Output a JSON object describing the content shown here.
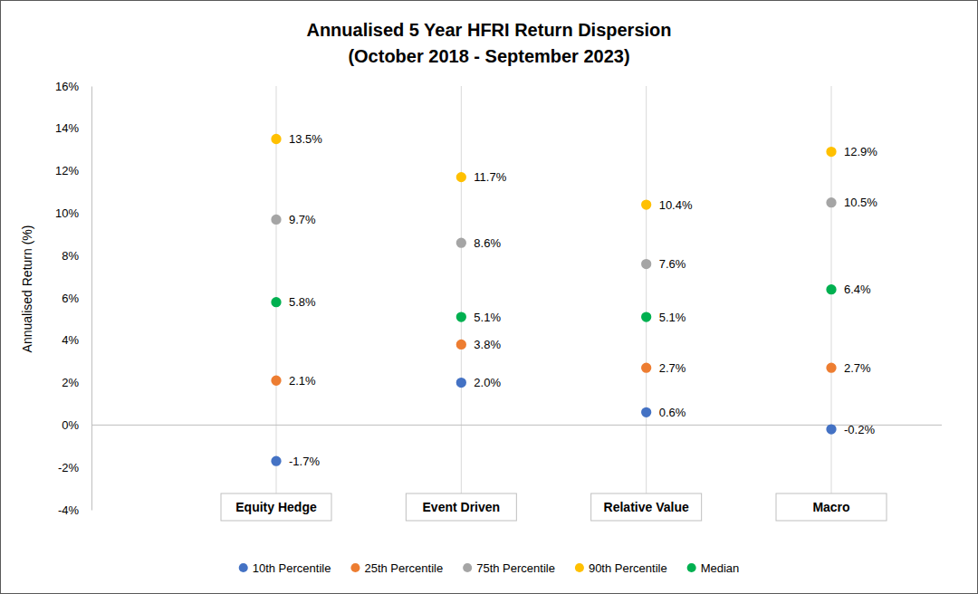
{
  "chart_data": {
    "type": "scatter",
    "title": "Annualised 5 Year HFRI Return Dispersion",
    "subtitle": "(October 2018 - September 2023)",
    "ylabel": "Annualised Return (%)",
    "categories": [
      "Equity Hedge",
      "Event Driven",
      "Relative Value",
      "Macro"
    ],
    "series": [
      {
        "name": "10th Percentile",
        "color": "#4472c4",
        "values": [
          -1.7,
          2.0,
          0.6,
          -0.2
        ],
        "value_labels": [
          "-1.7%",
          "2.0%",
          "0.6%",
          "-0.2%"
        ]
      },
      {
        "name": "25th Percentile",
        "color": "#ed7d31",
        "values": [
          2.1,
          3.8,
          2.7,
          2.7
        ],
        "value_labels": [
          "2.1%",
          "3.8%",
          "2.7%",
          "2.7%"
        ]
      },
      {
        "name": "75th Percentile",
        "color": "#a5a5a5",
        "values": [
          9.7,
          8.6,
          7.6,
          10.5
        ],
        "value_labels": [
          "9.7%",
          "8.6%",
          "7.6%",
          "10.5%"
        ]
      },
      {
        "name": "90th Percentile",
        "color": "#ffc000",
        "values": [
          13.5,
          11.7,
          10.4,
          12.9
        ],
        "value_labels": [
          "13.5%",
          "11.7%",
          "10.4%",
          "12.9%"
        ]
      },
      {
        "name": "Median",
        "color": "#00b050",
        "values": [
          5.8,
          5.1,
          5.1,
          6.4
        ],
        "value_labels": [
          "5.8%",
          "5.1%",
          "5.1%",
          "6.4%"
        ]
      }
    ],
    "ylim": [
      -4,
      16
    ],
    "yticks": [
      {
        "value": -4,
        "label": "-4%"
      },
      {
        "value": -2,
        "label": "-2%"
      },
      {
        "value": 0,
        "label": "0%"
      },
      {
        "value": 2,
        "label": "2%"
      },
      {
        "value": 4,
        "label": "4%"
      },
      {
        "value": 6,
        "label": "6%"
      },
      {
        "value": 8,
        "label": "8%"
      },
      {
        "value": 10,
        "label": "10%"
      },
      {
        "value": 12,
        "label": "12%"
      },
      {
        "value": 14,
        "label": "14%"
      },
      {
        "value": 16,
        "label": "16%"
      }
    ],
    "grid": false,
    "marker": "circle",
    "data_labels": true,
    "legend": "bottom"
  }
}
